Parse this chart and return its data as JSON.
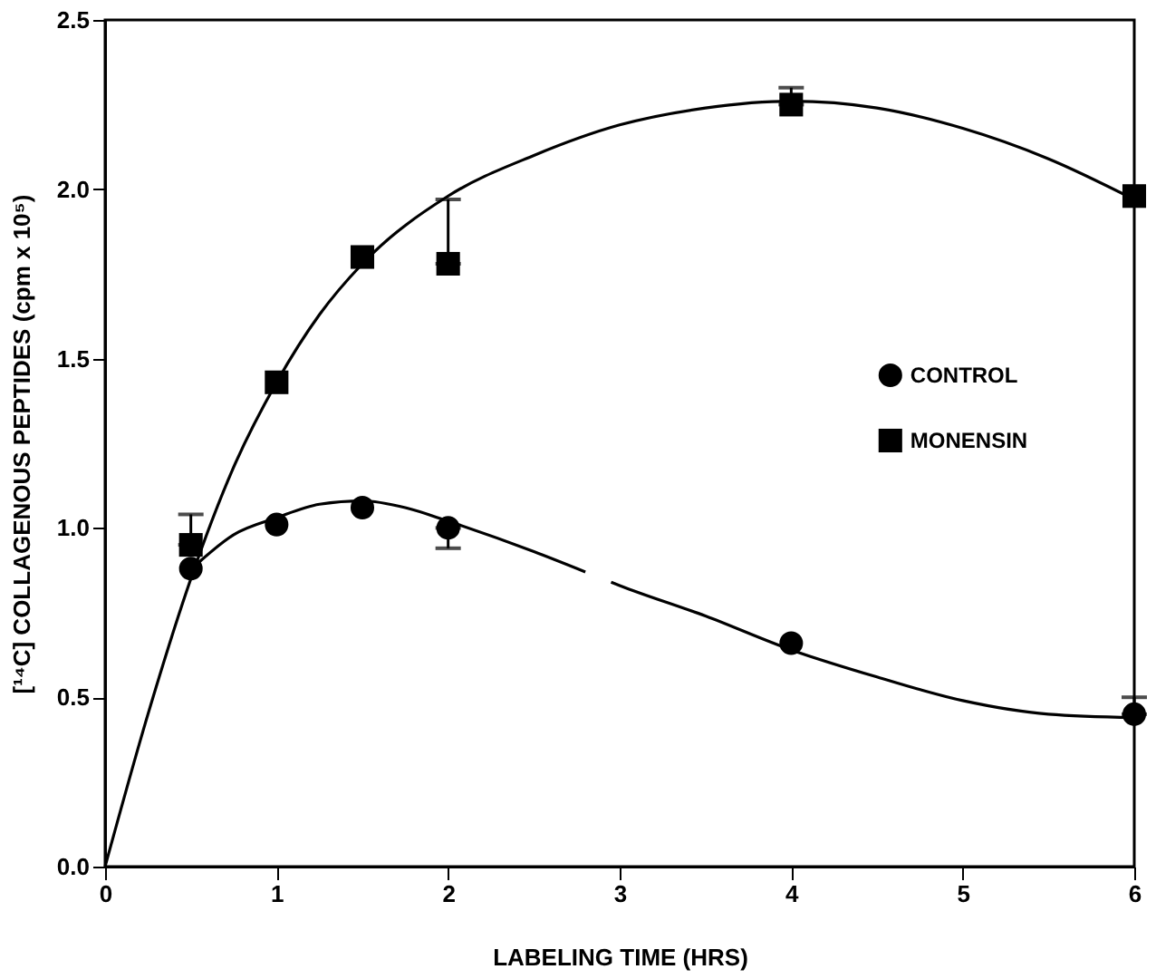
{
  "chart_data": {
    "type": "scatter",
    "xlabel": "LABELING TIME (HRS)",
    "ylabel": "[¹⁴C] COLLAGENOUS PEPTIDES (cpm x 10⁵)",
    "xlim": [
      0,
      6
    ],
    "xticks": [
      0,
      1,
      2,
      3,
      4,
      5,
      6
    ],
    "ylim": [
      0,
      2.5
    ],
    "yticks": [
      {
        "value": 0,
        "label": "0.0"
      },
      {
        "value": 0.5,
        "label": "0.5"
      },
      {
        "value": 1,
        "label": "1.0"
      },
      {
        "value": 1.5,
        "label": "1.5"
      },
      {
        "value": 2,
        "label": "2.0"
      },
      {
        "value": 2.5,
        "label": "2.5"
      }
    ],
    "grid": false,
    "legend": "right",
    "series": [
      {
        "type": "line",
        "color": "#000000",
        "marker": "none",
        "x": [
          0,
          0.25,
          0.5,
          0.75,
          1,
          1.25,
          1.5,
          2,
          2.5,
          3,
          3.5,
          4,
          4.5,
          5,
          5.5,
          6
        ],
        "values": [
          0,
          0.45,
          0.85,
          1.18,
          1.43,
          1.63,
          1.78,
          1.98,
          2.1,
          2.19,
          2.24,
          2.26,
          2.24,
          2.18,
          2.09,
          1.97
        ]
      },
      {
        "type": "line",
        "color": "#000000",
        "marker": "none",
        "x": [
          0.55,
          0.75,
          1,
          1.25,
          1.5,
          1.75,
          2,
          2.5,
          2.8,
          2.88,
          2.95,
          3,
          3.5,
          4,
          4.5,
          5,
          5.5,
          6
        ],
        "values": [
          0.9,
          0.98,
          1.03,
          1.07,
          1.08,
          1.06,
          1.02,
          0.93,
          0.87,
          null,
          0.84,
          0.83,
          0.74,
          0.64,
          0.56,
          0.49,
          0.45,
          0.44
        ]
      },
      {
        "name": "CONTROL",
        "color": "#000000",
        "marker": "circle",
        "x": [
          0.5,
          1,
          1.5,
          2,
          4,
          6
        ],
        "values": [
          0.88,
          1.01,
          1.06,
          1.0,
          0.66,
          0.45
        ],
        "errors": [
          null,
          null,
          null,
          [
            0.94,
            1.0
          ],
          null,
          [
            0.45,
            0.5
          ]
        ]
      },
      {
        "name": "MONENSIN",
        "color": "#000000",
        "marker": "square",
        "x": [
          0.5,
          1,
          1.5,
          2,
          4,
          6
        ],
        "values": [
          0.95,
          1.43,
          1.8,
          1.78,
          2.25,
          1.98
        ],
        "errors": [
          [
            0.95,
            1.04
          ],
          null,
          null,
          [
            1.78,
            1.97
          ],
          [
            2.25,
            2.3
          ],
          null
        ]
      }
    ]
  }
}
